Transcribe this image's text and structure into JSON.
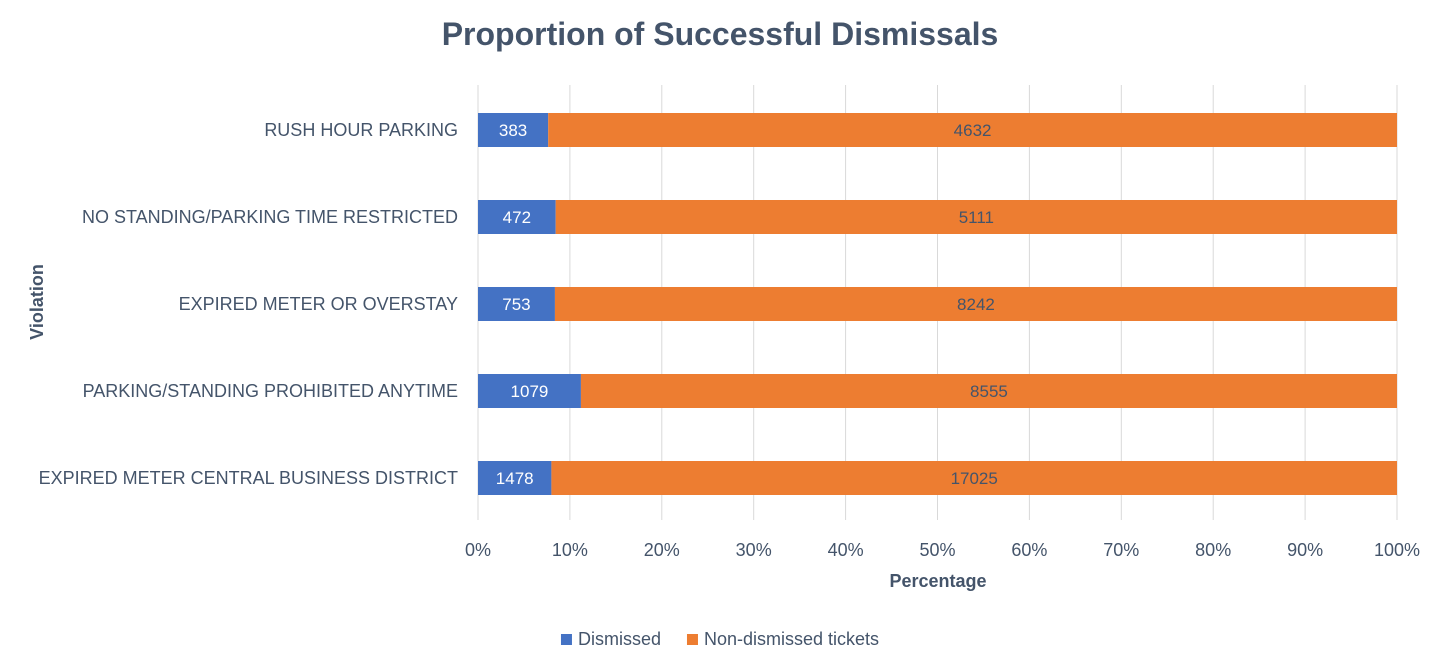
{
  "chart_data": {
    "type": "bar",
    "orientation": "horizontal",
    "stacked": "percent",
    "title": "Proportion of Successful Dismissals",
    "xlabel": "Percentage",
    "ylabel": "Violation",
    "xlim": [
      0,
      100
    ],
    "x_ticks": [
      "0%",
      "10%",
      "20%",
      "30%",
      "40%",
      "50%",
      "60%",
      "70%",
      "80%",
      "90%",
      "100%"
    ],
    "grid": true,
    "legend_position": "bottom",
    "categories": [
      "RUSH HOUR PARKING",
      "NO STANDING/PARKING TIME RESTRICTED",
      "EXPIRED METER OR OVERSTAY",
      "PARKING/STANDING PROHIBITED ANYTIME",
      "EXPIRED METER CENTRAL BUSINESS DISTRICT"
    ],
    "series": [
      {
        "name": "Dismissed",
        "color": "#4472c4",
        "values": [
          383,
          472,
          753,
          1079,
          1478
        ]
      },
      {
        "name": "Non-dismissed tickets",
        "color": "#ed7d31",
        "values": [
          4632,
          5111,
          8242,
          8555,
          17025
        ]
      }
    ]
  }
}
